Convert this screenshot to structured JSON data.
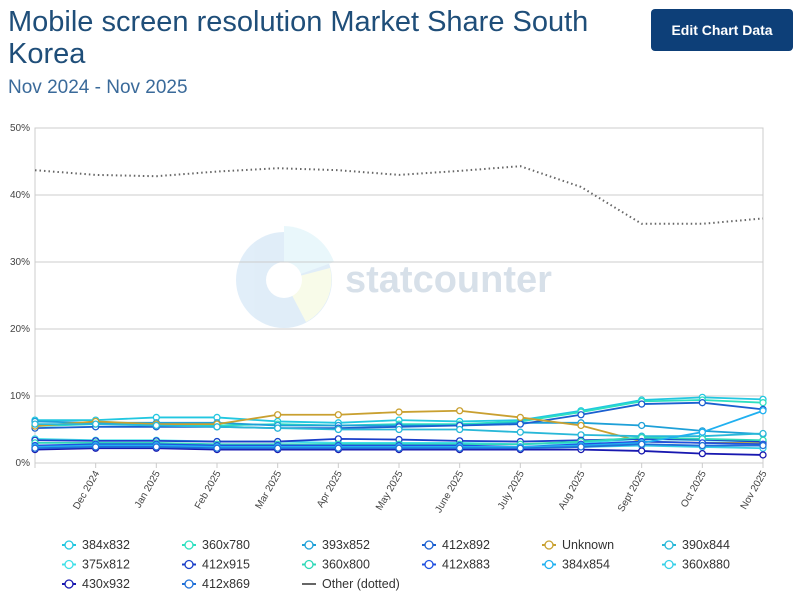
{
  "chart_data": {
    "type": "line",
    "title": "Mobile screen resolution Market Share South Korea",
    "subtitle": "Nov 2024 - Nov 2025",
    "button": "Edit Chart Data",
    "watermark": "statcounter",
    "categories": [
      null,
      "Dec 2024",
      "Jan 2025",
      "Feb 2025",
      "Mar 2025",
      "Apr 2025",
      "May 2025",
      "June 2025",
      "July 2025",
      "Aug 2025",
      "Sept 2025",
      "Oct 2025",
      "Nov 2025"
    ],
    "ylim": [
      0,
      50
    ],
    "yticks": [
      {
        "value": 0,
        "label": "0%"
      },
      {
        "value": 10,
        "label": "10%"
      },
      {
        "value": 20,
        "label": "20%"
      },
      {
        "value": 30,
        "label": "30%"
      },
      {
        "value": 40,
        "label": "40%"
      },
      {
        "value": 50,
        "label": "50%"
      }
    ],
    "grid": true,
    "legend": "bottom",
    "series": [
      {
        "name": "384x832",
        "color": "#22c7e0",
        "values": [
          6.4,
          6.4,
          6.8,
          6.8,
          6.2,
          6.0,
          6.4,
          6.2,
          6.4,
          7.8,
          9.4,
          9.8,
          9.5
        ]
      },
      {
        "name": "360x780",
        "color": "#2ee0c0",
        "values": [
          5.5,
          5.8,
          5.8,
          5.6,
          5.8,
          5.6,
          5.8,
          5.8,
          6.2,
          7.6,
          9.2,
          9.4,
          9.0
        ]
      },
      {
        "name": "393x852",
        "color": "#1ea0d8",
        "values": [
          6.2,
          6.0,
          6.0,
          6.0,
          5.6,
          5.6,
          5.6,
          5.6,
          6.0,
          6.0,
          5.6,
          4.8,
          4.3
        ]
      },
      {
        "name": "412x892",
        "color": "#1a5fd0",
        "values": [
          5.2,
          5.4,
          5.4,
          5.4,
          5.2,
          5.2,
          5.4,
          5.6,
          5.8,
          7.2,
          8.8,
          9.0,
          8.0
        ]
      },
      {
        "name": "Unknown",
        "color": "#c9a030",
        "values": [
          5.5,
          6.2,
          5.8,
          5.8,
          7.2,
          7.2,
          7.6,
          7.8,
          6.8,
          5.6,
          3.2,
          3.0,
          3.0
        ]
      },
      {
        "name": "390x844",
        "color": "#28b8d8",
        "values": [
          5.8,
          5.8,
          5.6,
          5.4,
          5.2,
          5.0,
          5.0,
          5.0,
          4.6,
          4.2,
          4.0,
          4.0,
          4.4
        ]
      },
      {
        "name": "375x812",
        "color": "#40e0e8",
        "values": [
          3.6,
          3.4,
          3.4,
          3.2,
          3.2,
          3.0,
          3.0,
          3.0,
          2.8,
          3.0,
          3.6,
          3.4,
          3.2
        ]
      },
      {
        "name": "412x915",
        "color": "#1a3fc8",
        "values": [
          3.4,
          3.3,
          3.3,
          3.2,
          3.2,
          3.6,
          3.5,
          3.3,
          3.2,
          3.4,
          3.6,
          3.5,
          3.2
        ]
      },
      {
        "name": "360x800",
        "color": "#30d8b8",
        "values": [
          3.0,
          3.0,
          3.0,
          2.8,
          2.8,
          2.8,
          2.8,
          2.8,
          2.8,
          3.2,
          3.8,
          3.6,
          3.4
        ]
      },
      {
        "name": "412x883",
        "color": "#2050e0",
        "values": [
          2.6,
          2.8,
          2.8,
          2.6,
          2.6,
          2.6,
          2.6,
          2.6,
          2.4,
          2.8,
          3.2,
          3.0,
          2.8
        ]
      },
      {
        "name": "384x854",
        "color": "#20b0f0",
        "values": [
          2.4,
          2.6,
          2.6,
          2.4,
          2.4,
          2.4,
          2.4,
          2.4,
          2.4,
          2.6,
          3.0,
          4.6,
          7.8
        ]
      },
      {
        "name": "360x880",
        "color": "#38d0e8",
        "values": [
          2.2,
          2.4,
          2.4,
          2.2,
          2.2,
          2.2,
          2.2,
          2.2,
          2.2,
          2.4,
          2.6,
          2.4,
          2.2
        ]
      },
      {
        "name": "430x932",
        "color": "#1818b0",
        "values": [
          2.0,
          2.2,
          2.2,
          2.0,
          2.0,
          2.0,
          2.0,
          2.0,
          2.0,
          2.0,
          1.8,
          1.4,
          1.2
        ]
      },
      {
        "name": "412x869",
        "color": "#2070d8",
        "values": [
          2.2,
          2.4,
          2.4,
          2.2,
          2.2,
          2.2,
          2.2,
          2.2,
          2.2,
          2.4,
          2.8,
          2.6,
          2.6
        ]
      },
      {
        "name": "Other (dotted)",
        "color": "#666666",
        "style": "dotted",
        "values": [
          43.7,
          43.0,
          42.8,
          43.5,
          44.0,
          43.7,
          43.0,
          43.6,
          44.3,
          41.2,
          35.7,
          35.7,
          36.5
        ]
      }
    ]
  }
}
